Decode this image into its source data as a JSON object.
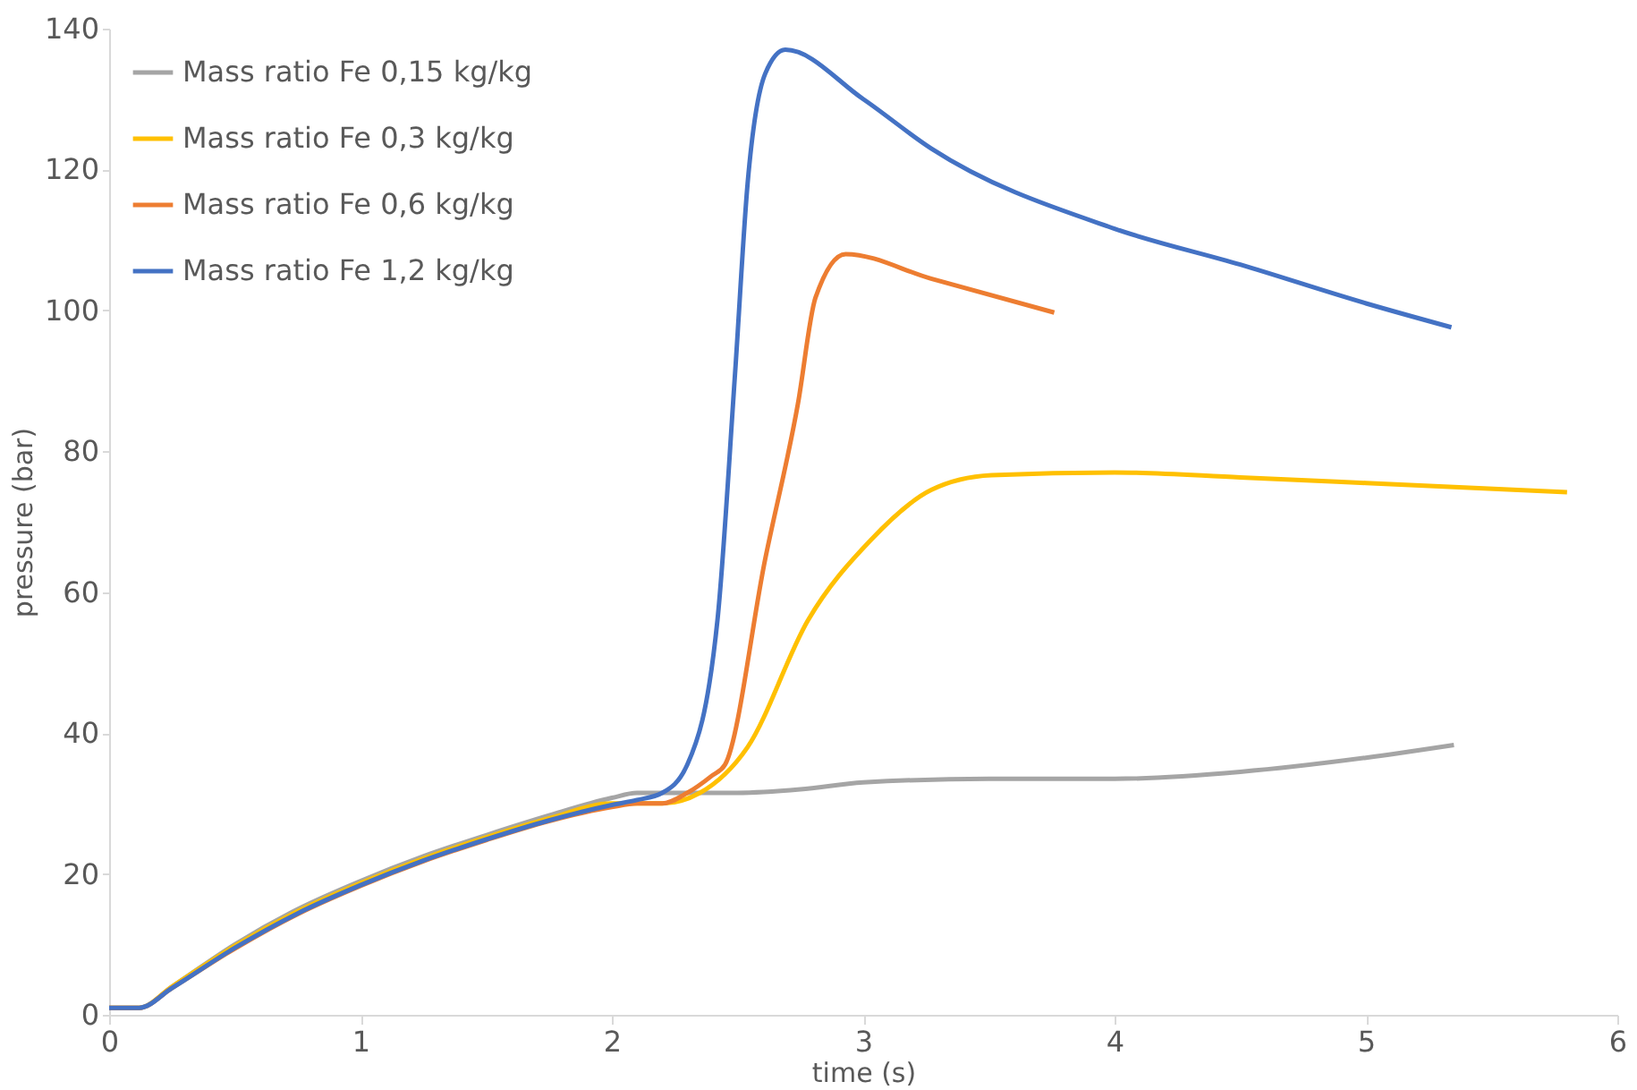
{
  "chart_data": {
    "type": "line",
    "xlabel": "time (s)",
    "ylabel": "pressure (bar)",
    "xlim": [
      0,
      6
    ],
    "xticks": [
      0,
      1,
      2,
      3,
      4,
      5,
      6
    ],
    "ylim": [
      0,
      140
    ],
    "yticks": [
      0,
      20,
      40,
      60,
      80,
      100,
      120,
      140
    ],
    "grid": false,
    "legend": "top left",
    "marker": "none",
    "line_style": "solid",
    "series": [
      {
        "name": "Mass ratio Fe 0,15 kg/kg",
        "color": "#a5a5a5",
        "x": [
          0,
          0.12,
          0.25,
          0.5,
          0.75,
          1,
          1.25,
          1.5,
          1.75,
          2,
          2.1,
          2.5,
          2.75,
          3,
          3.5,
          4,
          4.5,
          5,
          5.35
        ],
        "values": [
          1,
          1,
          4,
          10,
          15,
          19,
          22.5,
          25.5,
          28.3,
          30.8,
          31.5,
          31.5,
          32,
          33,
          33.5,
          33.5,
          34.5,
          36.5,
          38.3
        ]
      },
      {
        "name": "Mass ratio Fe 0,3 kg/kg",
        "color": "#ffc000",
        "x": [
          0,
          0.12,
          0.25,
          0.5,
          0.75,
          1,
          1.25,
          1.5,
          1.75,
          2,
          2.2,
          2.35,
          2.54,
          2.78,
          3.03,
          3.27,
          3.51,
          4,
          4.5,
          5,
          5.8
        ],
        "values": [
          1,
          1,
          4,
          9.8,
          14.7,
          18.7,
          22.2,
          25.2,
          27.9,
          30,
          30,
          31.5,
          38,
          56,
          67.4,
          74.5,
          76.6,
          77,
          76.3,
          75.5,
          74.2
        ]
      },
      {
        "name": "Mass ratio Fe 0,6 kg/kg",
        "color": "#ed7d31",
        "x": [
          0,
          0.12,
          0.25,
          0.5,
          0.75,
          1,
          1.25,
          1.5,
          1.75,
          2,
          2.1,
          2.2,
          2.3,
          2.4,
          2.45,
          2.61,
          2.74,
          2.81,
          2.93,
          3.27,
          3.76
        ],
        "values": [
          1,
          1,
          3.8,
          9.4,
          14.3,
          18.3,
          21.8,
          24.8,
          27.5,
          29.5,
          30,
          30,
          31.5,
          34,
          35.5,
          64.7,
          86.7,
          101.8,
          108,
          104.5,
          99.7
        ]
      },
      {
        "name": "Mass ratio Fe 1,2 kg/kg",
        "color": "#4472c4",
        "x": [
          0,
          0.12,
          0.25,
          0.5,
          0.75,
          1,
          1.25,
          1.5,
          1.75,
          2,
          2.1,
          2.2,
          2.3,
          2.42,
          2.49,
          2.54,
          2.61,
          2.69,
          3,
          3.27,
          4,
          4.5,
          5,
          5.34
        ],
        "values": [
          1,
          1,
          3.8,
          9.5,
          14.4,
          18.4,
          21.9,
          24.9,
          27.6,
          29.8,
          30.5,
          31.5,
          35.5,
          56,
          91,
          118,
          133.6,
          137,
          130,
          123,
          111.6,
          106.5,
          101,
          97.6
        ]
      }
    ]
  }
}
